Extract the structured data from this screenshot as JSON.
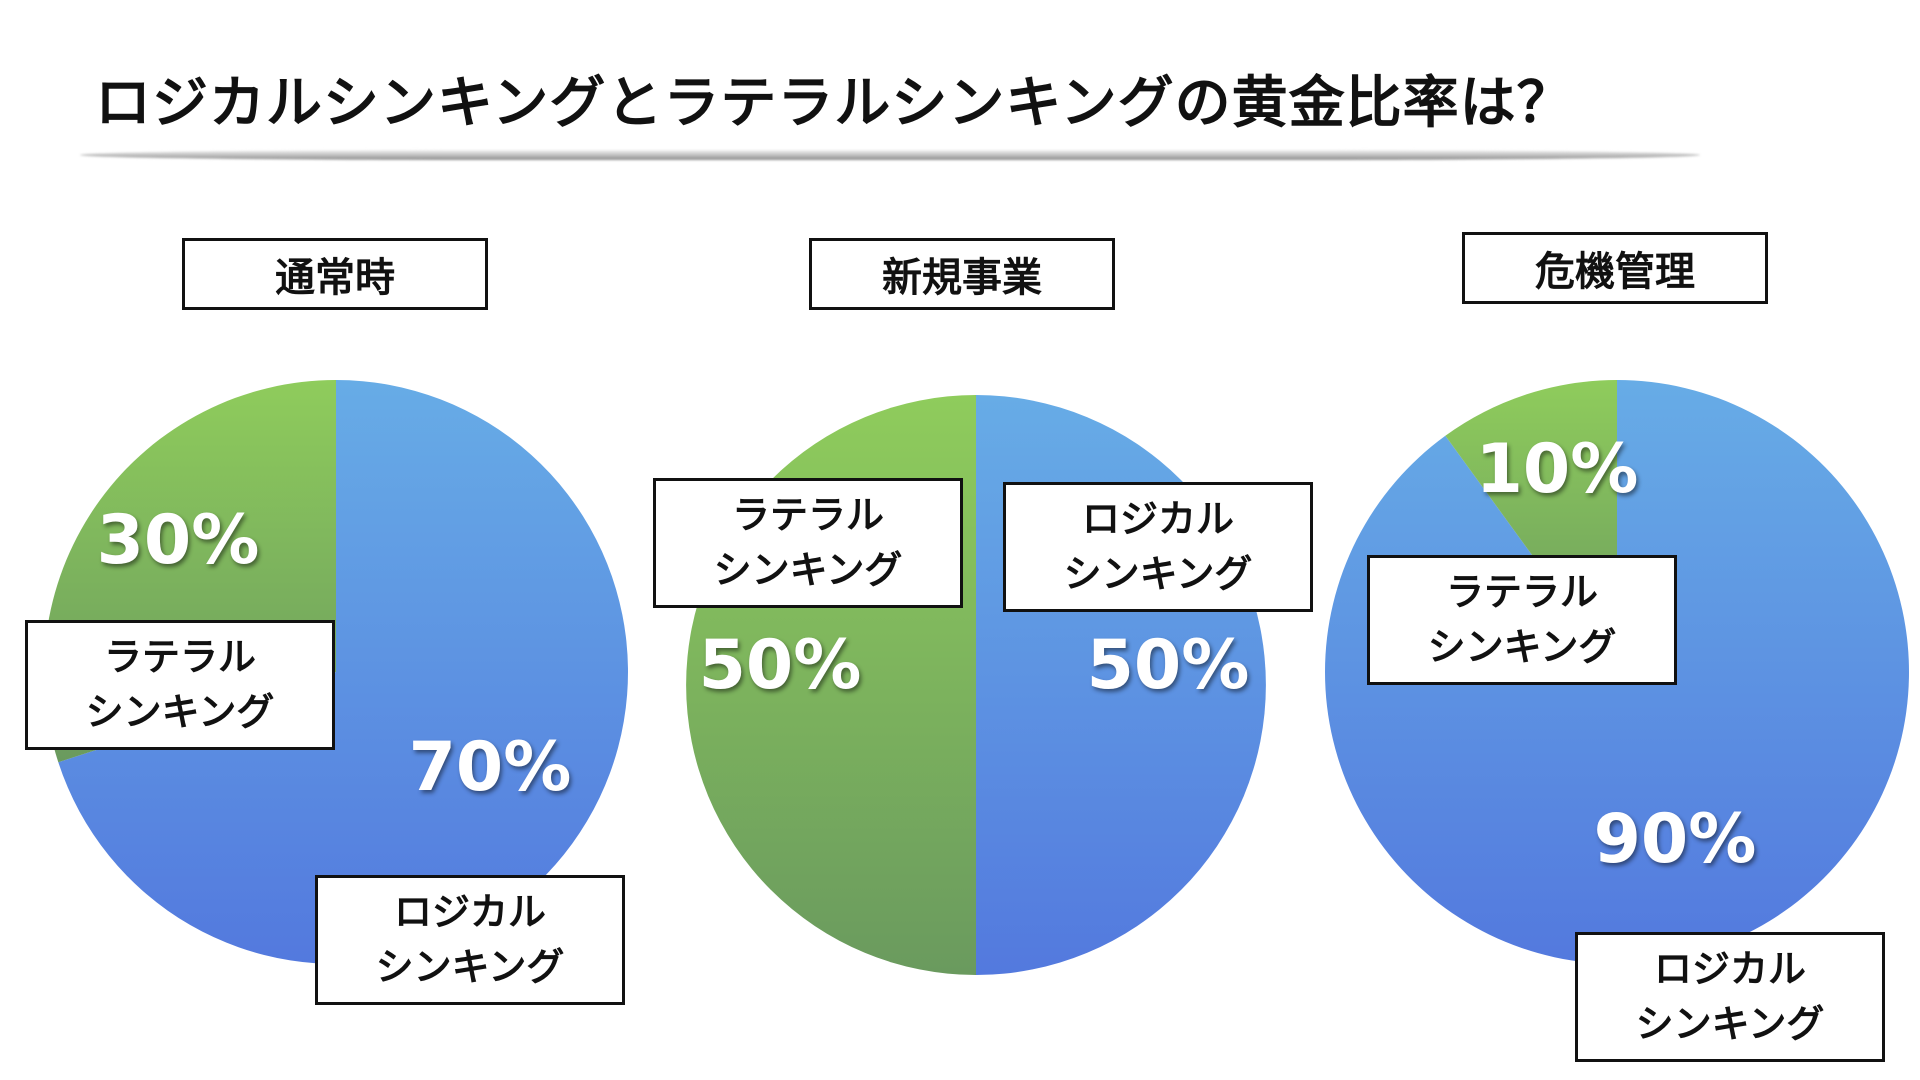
{
  "title": "ロジカルシンキングとラテラルシンキングの黄金比率は？",
  "colors": {
    "logical_top": "#67ace6",
    "logical_bottom": "#5379de",
    "lateral_top": "#8fcc5c",
    "lateral_bottom": "#6a9a5e"
  },
  "chart_data": [
    {
      "type": "pie",
      "title": "通常時",
      "slices": [
        {
          "label": "ロジカル シンキング",
          "label_lines": [
            "ロジカル",
            "シンキング"
          ],
          "value": 70,
          "display": "70%"
        },
        {
          "label": "ラテラル シンキング",
          "label_lines": [
            "ラテラル",
            "シンキング"
          ],
          "value": 30,
          "display": "30%"
        }
      ]
    },
    {
      "type": "pie",
      "title": "新規事業",
      "slices": [
        {
          "label": "ロジカル シンキング",
          "label_lines": [
            "ロジカル",
            "シンキング"
          ],
          "value": 50,
          "display": "50%"
        },
        {
          "label": "ラテラル シンキング",
          "label_lines": [
            "ラテラル",
            "シンキング"
          ],
          "value": 50,
          "display": "50%"
        }
      ]
    },
    {
      "type": "pie",
      "title": "危機管理",
      "slices": [
        {
          "label": "ロジカル シンキング",
          "label_lines": [
            "ロジカル",
            "シンキング"
          ],
          "value": 90,
          "display": "90%"
        },
        {
          "label": "ラテラル シンキング",
          "label_lines": [
            "ラテラル",
            "シンキング"
          ],
          "value": 10,
          "display": "10%"
        }
      ]
    }
  ]
}
